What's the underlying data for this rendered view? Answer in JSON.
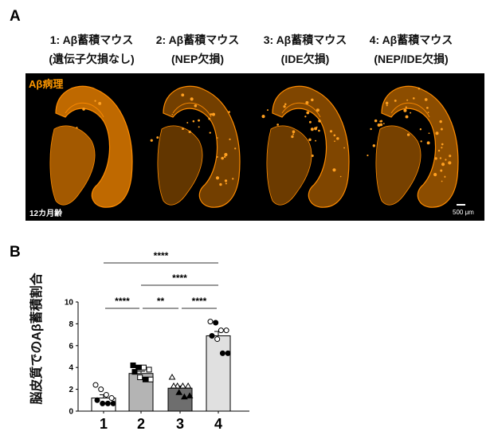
{
  "panel_a": {
    "letter": "A",
    "groups": [
      {
        "line1": "1: Aβ蓄積マウス",
        "line2": "(遺伝子欠損なし)"
      },
      {
        "line1": "2: Aβ蓄積マウス",
        "line2": "(NEP欠損)"
      },
      {
        "line1": "3: Aβ蓄積マウス",
        "line2": "(IDE欠損)"
      },
      {
        "line1": "4: Aβ蓄積マウス",
        "line2": "(NEP/IDE欠損)"
      }
    ],
    "stain_label": "Aβ病理",
    "age_label": "12カ月齢",
    "scale_bar": "500 μm",
    "stain_color": "#ff8c00"
  },
  "panel_b": {
    "letter": "B"
  },
  "chart_data": {
    "type": "bar",
    "categories": [
      "1",
      "2",
      "3",
      "4"
    ],
    "values": [
      1.2,
      3.45,
      2.1,
      6.9
    ],
    "errors": [
      0.3,
      0.2,
      0.2,
      0.4
    ],
    "bar_colors": [
      "#ffffff",
      "#b4b4b4",
      "#6e6e6e",
      "#e0e0e0"
    ],
    "ylabel": "脳皮質でのAβ蓄積割合",
    "xlabel": "",
    "ylim": [
      0,
      10
    ],
    "yticks": [
      "0",
      "2",
      "4",
      "6",
      "8",
      "10"
    ],
    "points": [
      [
        {
          "v": 2.4,
          "m": "circle-open"
        },
        {
          "v": 2.0,
          "m": "circle-open"
        },
        {
          "v": 1.5,
          "m": "circle-open"
        },
        {
          "v": 1.2,
          "m": "circle-open"
        },
        {
          "v": 1.0,
          "m": "circle-filled"
        },
        {
          "v": 0.7,
          "m": "circle-filled"
        },
        {
          "v": 0.7,
          "m": "circle-filled"
        },
        {
          "v": 0.7,
          "m": "circle-filled"
        }
      ],
      [
        {
          "v": 4.2,
          "m": "square-filled"
        },
        {
          "v": 4.0,
          "m": "square-filled"
        },
        {
          "v": 4.0,
          "m": "square-open"
        },
        {
          "v": 3.8,
          "m": "square-open"
        },
        {
          "v": 3.6,
          "m": "square-filled"
        },
        {
          "v": 3.1,
          "m": "square-open"
        },
        {
          "v": 2.9,
          "m": "square-filled"
        },
        {
          "v": 2.9,
          "m": "square-open"
        }
      ],
      [
        {
          "v": 3.1,
          "m": "triangle-open"
        },
        {
          "v": 2.3,
          "m": "triangle-open"
        },
        {
          "v": 2.3,
          "m": "triangle-open"
        },
        {
          "v": 2.3,
          "m": "triangle-open"
        },
        {
          "v": 2.3,
          "m": "triangle-open"
        },
        {
          "v": 1.7,
          "m": "triangle-filled"
        },
        {
          "v": 1.3,
          "m": "triangle-filled"
        },
        {
          "v": 1.4,
          "m": "triangle-filled"
        }
      ],
      [
        {
          "v": 8.2,
          "m": "circle-open"
        },
        {
          "v": 8.1,
          "m": "circle-filled"
        },
        {
          "v": 7.4,
          "m": "circle-open"
        },
        {
          "v": 7.4,
          "m": "circle-open"
        },
        {
          "v": 6.9,
          "m": "circle-filled"
        },
        {
          "v": 6.6,
          "m": "circle-open"
        },
        {
          "v": 5.3,
          "m": "circle-filled"
        },
        {
          "v": 5.3,
          "m": "circle-filled"
        }
      ]
    ],
    "significance": [
      {
        "from": "1",
        "to": "4",
        "label": "****"
      },
      {
        "from": "2",
        "to": "4",
        "label": "****"
      },
      {
        "from": "1",
        "to": "2",
        "label": "****"
      },
      {
        "from": "2",
        "to": "3",
        "label": "**"
      },
      {
        "from": "3",
        "to": "4",
        "label": "****"
      }
    ],
    "grid": false,
    "legend": "none"
  }
}
